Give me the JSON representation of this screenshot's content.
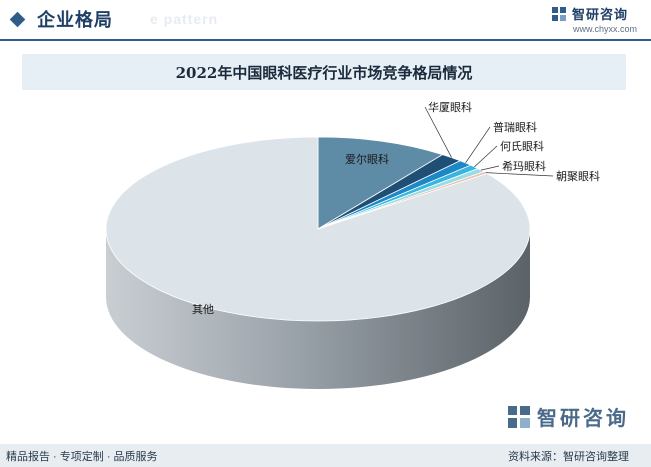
{
  "header": {
    "section_title": "企业格局",
    "bg_text": "e pattern",
    "brand_name": "智研咨询",
    "brand_url": "www.chyxx.com"
  },
  "chart_data": {
    "type": "pie",
    "title": "2022年中国眼科医疗行业市场竞争格局情况",
    "slices": [
      {
        "label": "爱尔眼科",
        "value": 10.0,
        "color": "#5e8ba6"
      },
      {
        "label": "华厦眼科",
        "value": 1.7,
        "color": "#1f4f74"
      },
      {
        "label": "普瑞眼科",
        "value": 1.1,
        "color": "#1c88c7"
      },
      {
        "label": "何氏眼科",
        "value": 0.8,
        "color": "#39b6e0"
      },
      {
        "label": "希玛眼科",
        "value": 0.7,
        "color": "#99dbe6"
      },
      {
        "label": "朝聚眼科",
        "value": 0.4,
        "color": "#ecc0ad"
      },
      {
        "label": "其他",
        "value": 85.3,
        "color": "#dce3e9"
      }
    ]
  },
  "watermark": {
    "name": "智研咨询"
  },
  "footer": {
    "left": "精品报告 · 专项定制 · 品质服务",
    "right": "资料来源：智研咨询整理"
  }
}
